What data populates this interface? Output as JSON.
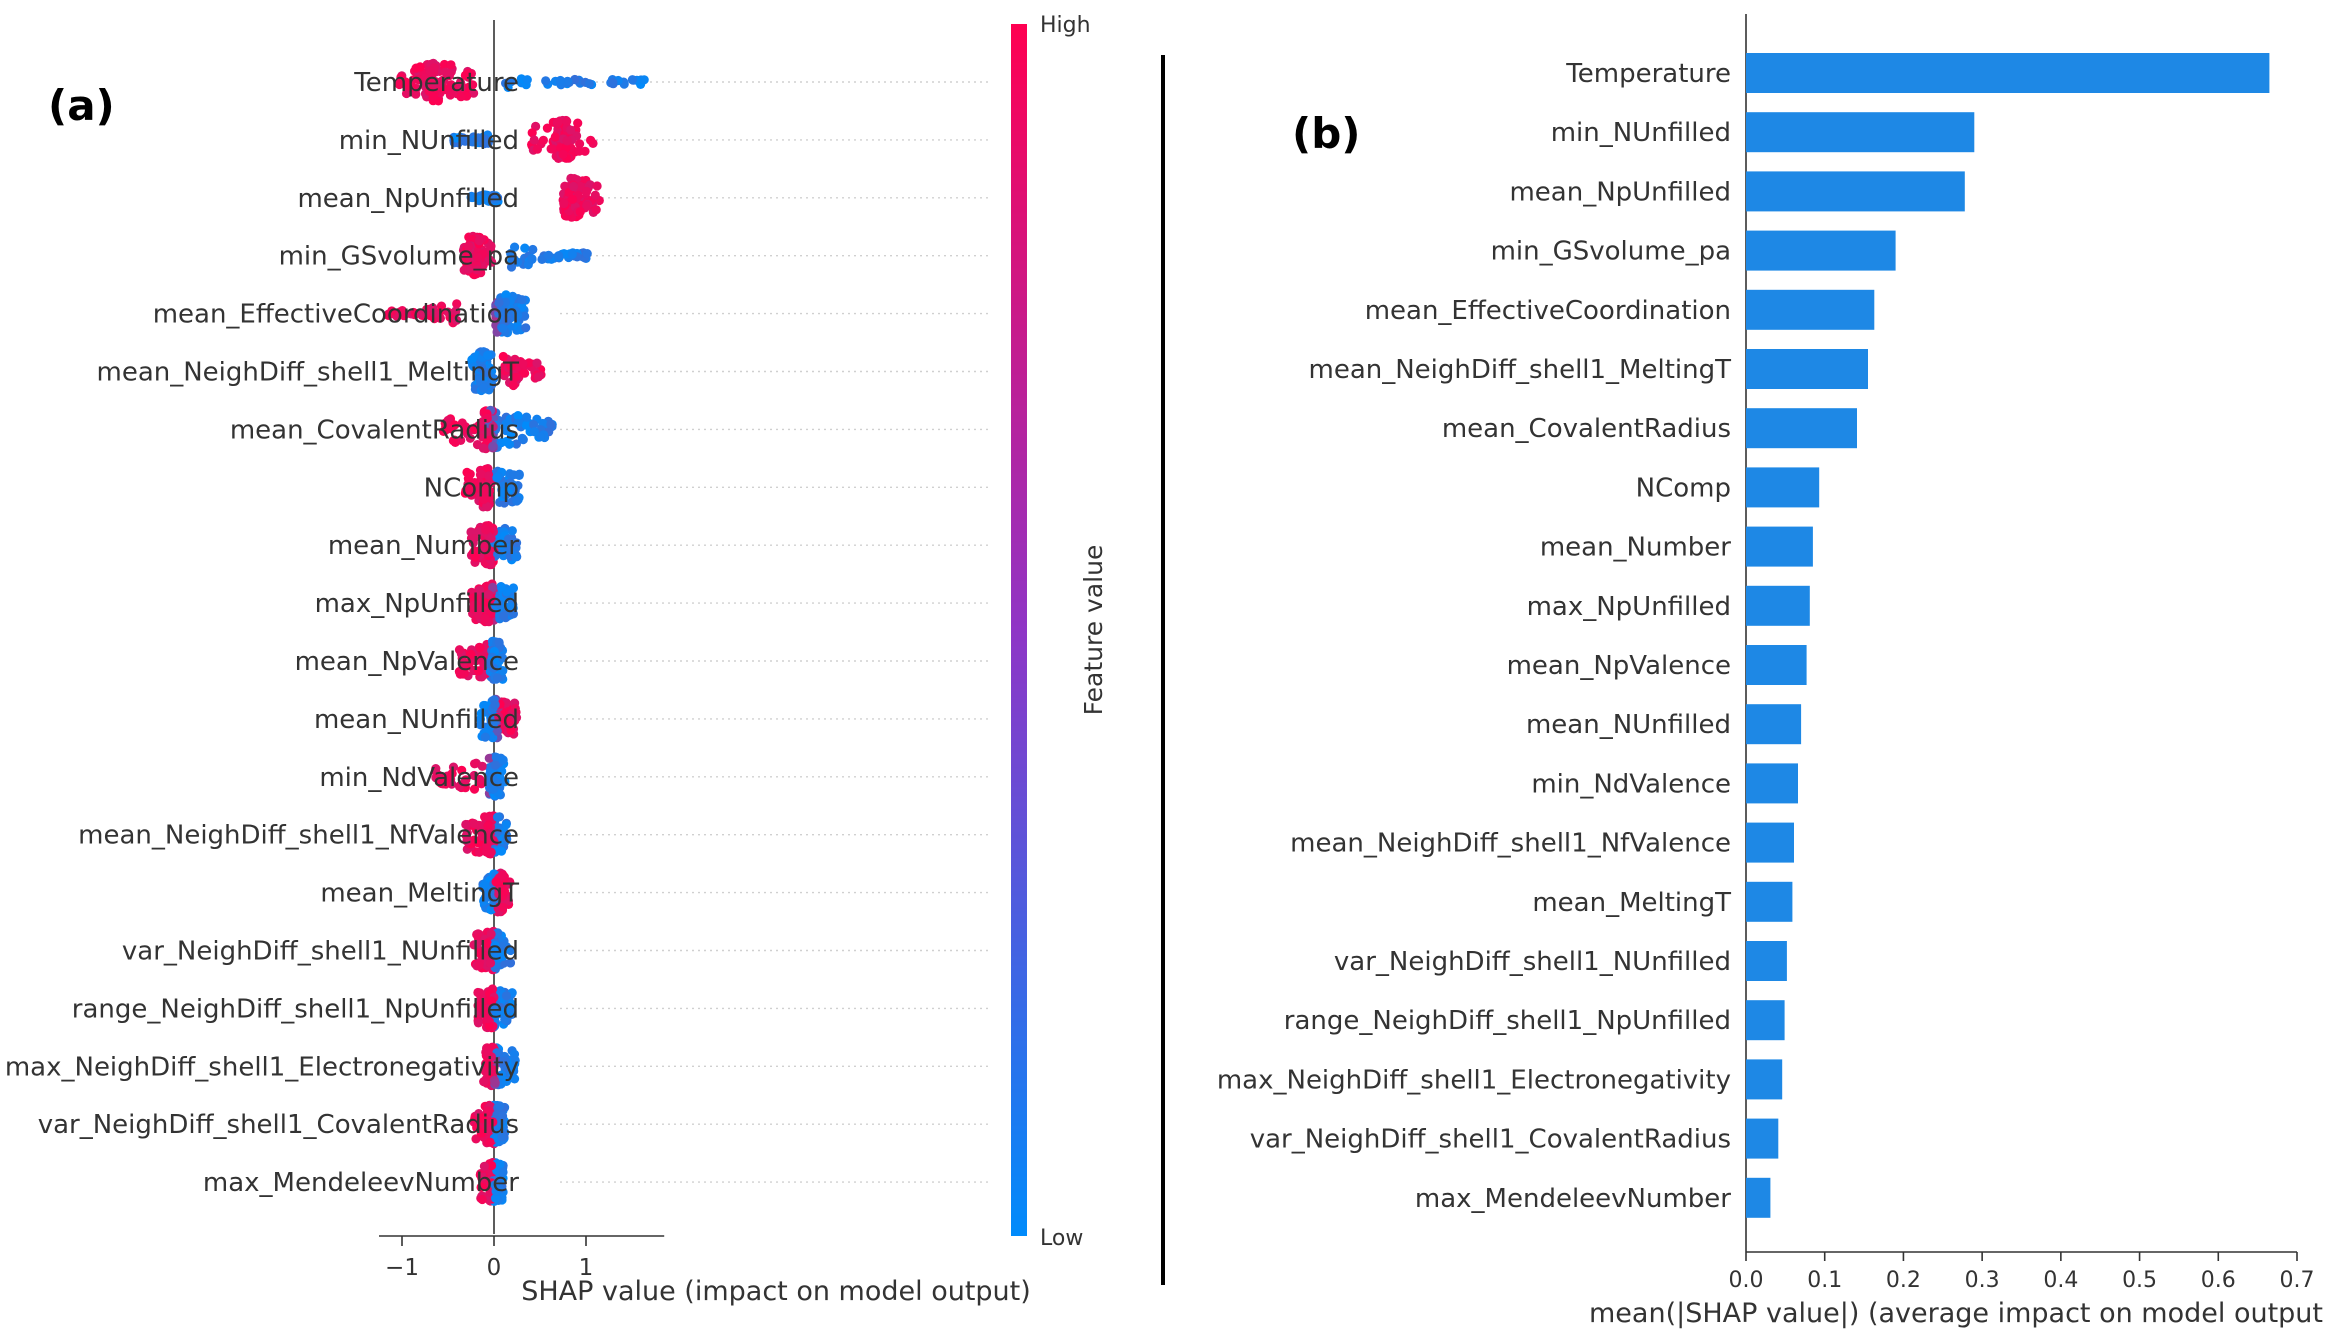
{
  "panel_a_label": "(a)",
  "panel_b_label": "(b)",
  "colors": {
    "high": "#ff0051",
    "low": "#008bfb",
    "bar": "#1e88e5",
    "text": "#333333",
    "divider": "#000000"
  },
  "chart_data": [
    {
      "type": "scatter",
      "subtype": "shap_beeswarm",
      "title": "",
      "xlabel": "SHAP value (impact on model output)",
      "xlim": [
        -1.25,
        1.85
      ],
      "xticks": [
        -1,
        0,
        1
      ],
      "xtick_labels": [
        "−1",
        "0",
        "1"
      ],
      "colorbar": {
        "label": "Feature value",
        "high_label": "High",
        "low_label": "Low"
      },
      "features": [
        {
          "name": "Temperature",
          "min": -1.05,
          "max": 1.72,
          "low_lo": 0.1,
          "low_hi": 1.72,
          "high_lo": -1.05,
          "high_hi": -0.2,
          "center": -0.6
        },
        {
          "name": "min_NUnfilled",
          "min": -0.45,
          "max": 1.12,
          "low_lo": -0.45,
          "low_hi": -0.05,
          "high_lo": 0.4,
          "high_hi": 1.12,
          "center": 0.75
        },
        {
          "name": "mean_NpUnfilled",
          "min": -0.5,
          "max": 1.15,
          "low_lo": -0.25,
          "low_hi": 0.05,
          "high_lo": 0.7,
          "high_hi": 1.15,
          "center": 0.85
        },
        {
          "name": "min_GSvolume_pa",
          "min": -0.35,
          "max": 1.02,
          "low_lo": 0.15,
          "low_hi": 1.02,
          "high_lo": -0.35,
          "high_hi": 0.0,
          "center": -0.2
        },
        {
          "name": "mean_EffectiveCoordination",
          "min": -1.15,
          "max": 0.35,
          "low_lo": 0.05,
          "low_hi": 0.35,
          "high_lo": -1.15,
          "high_hi": -0.4,
          "center": 0.1
        },
        {
          "name": "mean_NeighDiff_shell1_MeltingT",
          "min": -0.25,
          "max": 0.52,
          "low_lo": -0.25,
          "low_hi": 0.0,
          "high_lo": 0.1,
          "high_hi": 0.52,
          "center": -0.12
        },
        {
          "name": "mean_CovalentRadius",
          "min": -0.55,
          "max": 0.72,
          "low_lo": 0.0,
          "low_hi": 0.72,
          "high_lo": -0.55,
          "high_hi": -0.05,
          "center": -0.05
        },
        {
          "name": "NComp",
          "min": -0.32,
          "max": 0.28,
          "low_lo": 0.02,
          "low_hi": 0.28,
          "high_lo": -0.32,
          "high_hi": -0.02,
          "center": -0.1
        },
        {
          "name": "mean_Number",
          "min": -0.25,
          "max": 0.25,
          "low_lo": 0.0,
          "low_hi": 0.25,
          "high_lo": -0.25,
          "high_hi": 0.0,
          "center": -0.05
        },
        {
          "name": "max_NpUnfilled",
          "min": -0.25,
          "max": 0.22,
          "low_lo": 0.0,
          "low_hi": 0.22,
          "high_lo": -0.25,
          "high_hi": -0.02,
          "center": -0.05
        },
        {
          "name": "mean_NpValence",
          "min": -0.38,
          "max": 0.1,
          "low_lo": -0.05,
          "low_hi": 0.1,
          "high_lo": -0.38,
          "high_hi": -0.05,
          "center": 0.0
        },
        {
          "name": "mean_NUnfilled",
          "min": -0.15,
          "max": 0.25,
          "low_lo": -0.15,
          "low_hi": 0.02,
          "high_lo": 0.05,
          "high_hi": 0.25,
          "center": 0.0
        },
        {
          "name": "min_NdValence",
          "min": -0.65,
          "max": 0.12,
          "low_lo": -0.05,
          "low_hi": 0.12,
          "high_lo": -0.65,
          "high_hi": -0.1,
          "center": 0.0
        },
        {
          "name": "mean_NeighDiff_shell1_NfValence",
          "min": -0.32,
          "max": 0.14,
          "low_lo": 0.0,
          "low_hi": 0.14,
          "high_lo": -0.32,
          "high_hi": 0.0,
          "center": -0.05
        },
        {
          "name": "mean_MeltingT",
          "min": -0.12,
          "max": 0.18,
          "low_lo": -0.12,
          "low_hi": 0.02,
          "high_lo": 0.02,
          "high_hi": 0.18,
          "center": 0.05
        },
        {
          "name": "var_NeighDiff_shell1_NUnfilled",
          "min": -0.22,
          "max": 0.18,
          "low_lo": 0.0,
          "low_hi": 0.18,
          "high_lo": -0.22,
          "high_hi": 0.0,
          "center": -0.03
        },
        {
          "name": "range_NeighDiff_shell1_NpUnfilled",
          "min": -0.18,
          "max": 0.2,
          "low_lo": 0.0,
          "low_hi": 0.2,
          "high_lo": -0.18,
          "high_hi": 0.0,
          "center": -0.03
        },
        {
          "name": "max_NeighDiff_shell1_Electronegativity",
          "min": -0.12,
          "max": 0.24,
          "low_lo": 0.0,
          "low_hi": 0.24,
          "high_lo": -0.12,
          "high_hi": 0.02,
          "center": -0.03
        },
        {
          "name": "var_NeighDiff_shell1_CovalentRadius",
          "min": -0.22,
          "max": 0.12,
          "low_lo": 0.0,
          "low_hi": 0.12,
          "high_lo": -0.22,
          "high_hi": 0.0,
          "center": -0.03
        },
        {
          "name": "max_MendeleevNumber",
          "min": -0.15,
          "max": 0.1,
          "low_lo": 0.0,
          "low_hi": 0.1,
          "high_lo": -0.15,
          "high_hi": 0.0,
          "center": 0.0
        }
      ]
    },
    {
      "type": "bar",
      "orientation": "horizontal",
      "title": "",
      "xlabel": "mean(|SHAP value|) (average impact on model output m",
      "xlim": [
        0,
        0.7
      ],
      "xticks": [
        0,
        0.1,
        0.2,
        0.3,
        0.4,
        0.5,
        0.6,
        0.7
      ],
      "xtick_labels": [
        "0.0",
        "0.1",
        "0.2",
        "0.3",
        "0.4",
        "0.5",
        "0.6",
        "0.7"
      ],
      "categories": [
        "Temperature",
        "min_NUnfilled",
        "mean_NpUnfilled",
        "min_GSvolume_pa",
        "mean_EffectiveCoordination",
        "mean_NeighDiff_shell1_MeltingT",
        "mean_CovalentRadius",
        "NComp",
        "mean_Number",
        "max_NpUnfilled",
        "mean_NpValence",
        "mean_NUnfilled",
        "min_NdValence",
        "mean_NeighDiff_shell1_NfValence",
        "mean_MeltingT",
        "var_NeighDiff_shell1_NUnfilled",
        "range_NeighDiff_shell1_NpUnfilled",
        "max_NeighDiff_shell1_Electronegativity",
        "var_NeighDiff_shell1_CovalentRadius",
        "max_MendeleevNumber"
      ],
      "values": [
        0.665,
        0.29,
        0.278,
        0.19,
        0.163,
        0.155,
        0.141,
        0.093,
        0.085,
        0.081,
        0.077,
        0.07,
        0.066,
        0.061,
        0.059,
        0.052,
        0.049,
        0.046,
        0.041,
        0.031
      ]
    }
  ]
}
